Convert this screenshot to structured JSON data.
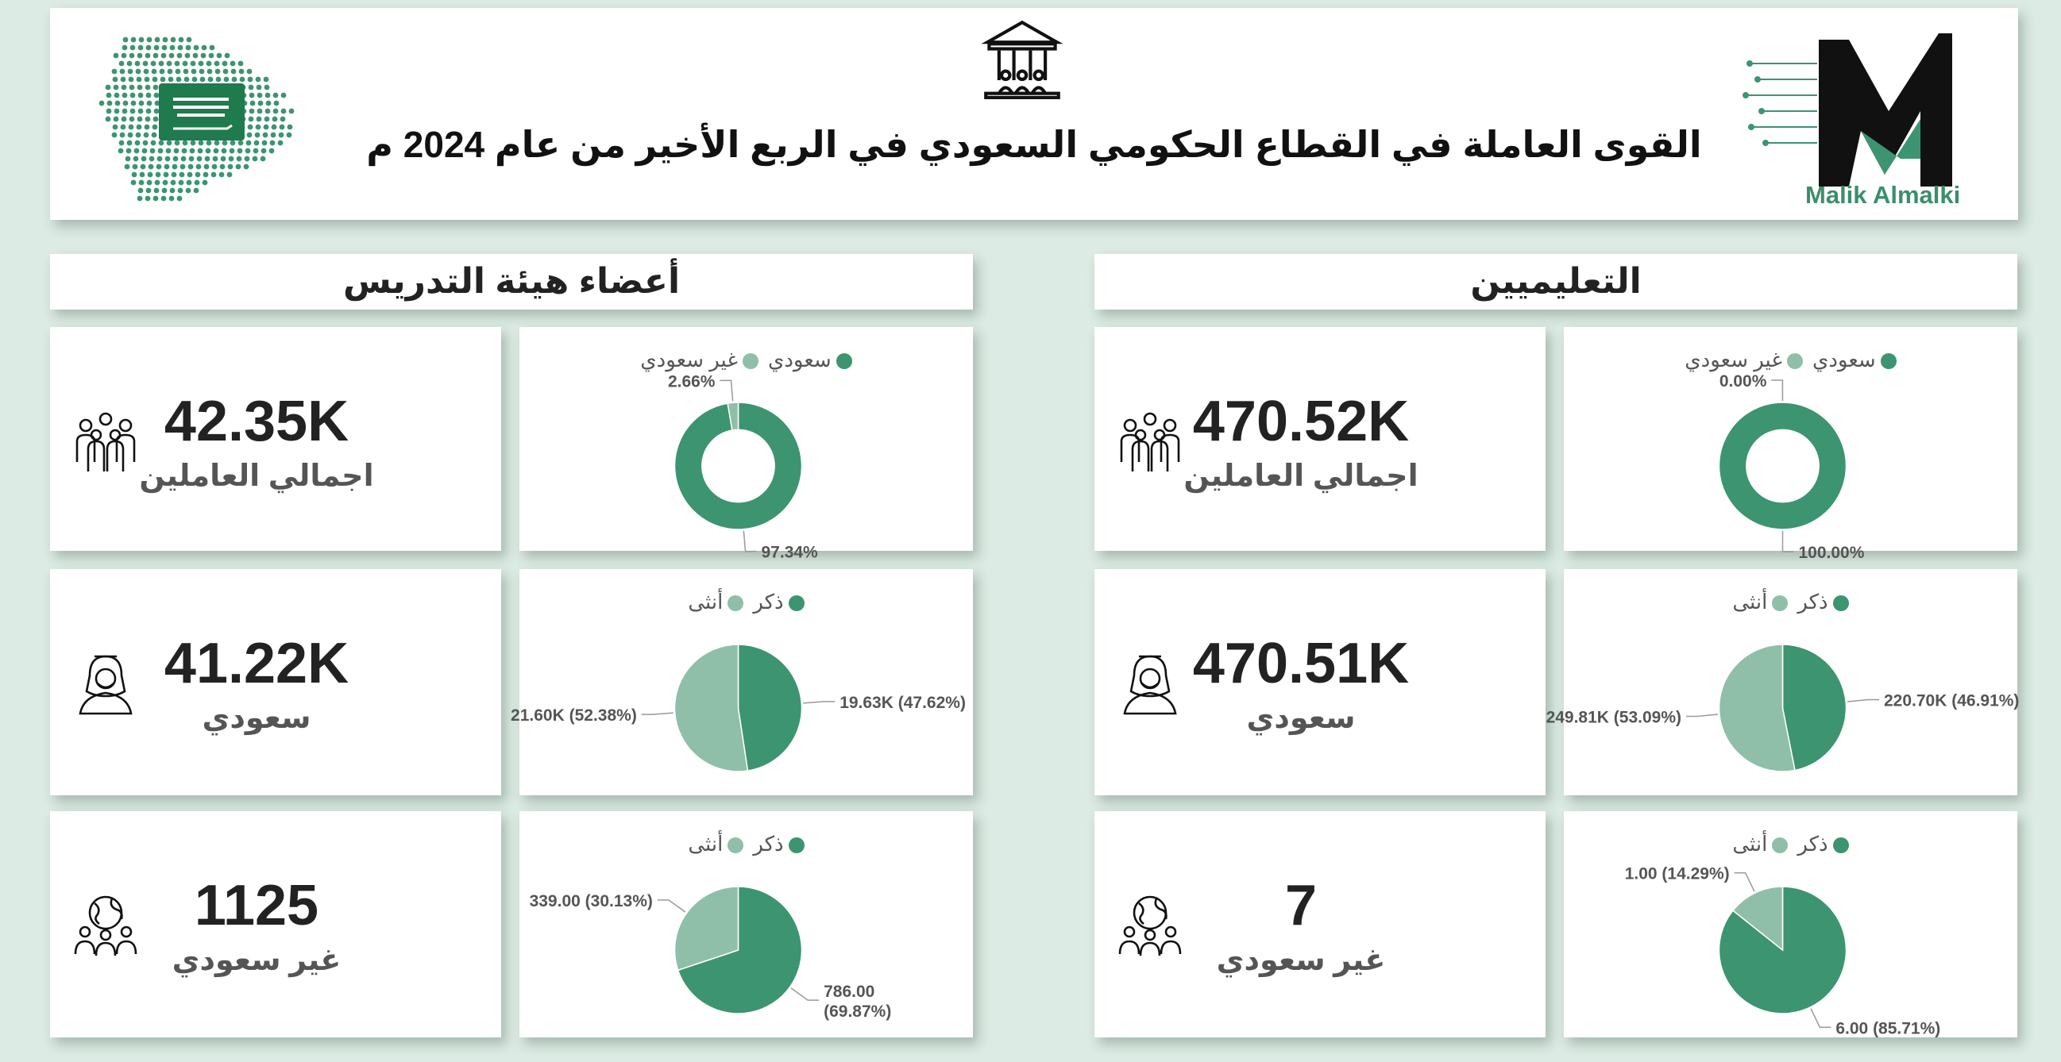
{
  "header": {
    "title": "القوى العاملة في القطاع الحكومي السعودي في الربع الأخير من عام 2024 م",
    "logo_text": "Malik Almalki"
  },
  "colors": {
    "primary": "#3d9470",
    "secondary": "#8fbfa8",
    "background": "#dcebe3"
  },
  "icons": {
    "header": "government-building-icon",
    "flag": "saudi-flag-map-icon",
    "logo": "m-monogram-logo-icon",
    "total": "group-people-icon",
    "saudi": "saudi-man-icon",
    "nonsaudi": "world-people-icon"
  },
  "sections": [
    {
      "title": "التعليميين",
      "kpis": [
        {
          "value": "470.52K",
          "label": "اجمالي العاملين"
        },
        {
          "value": "470.51K",
          "label": "سعودي"
        },
        {
          "value": "7",
          "label": "غير سعودي"
        }
      ]
    },
    {
      "title": "أعضاء هيئة التدريس",
      "kpis": [
        {
          "value": "42.35K",
          "label": "اجمالي العاملين"
        },
        {
          "value": "41.22K",
          "label": "سعودي"
        },
        {
          "value": "1125",
          "label": "غير سعودي"
        }
      ]
    }
  ],
  "chart_data": [
    {
      "type": "pie",
      "donut": true,
      "legend": [
        "سعودي",
        "غير سعودي"
      ],
      "labels": [
        "سعودي",
        "غير سعودي"
      ],
      "values": [
        470.52,
        0
      ],
      "data_labels": [
        "100.00%",
        "0.00%"
      ]
    },
    {
      "type": "pie",
      "legend": [
        "ذكر",
        "أنثى"
      ],
      "labels": [
        "ذكر",
        "أنثى"
      ],
      "values": [
        220.7,
        249.81
      ],
      "data_labels": [
        "220.70K (46.91%)",
        "249.81K (53.09%)"
      ]
    },
    {
      "type": "pie",
      "legend": [
        "ذكر",
        "أنثى"
      ],
      "labels": [
        "ذكر",
        "أنثى"
      ],
      "values": [
        6,
        1
      ],
      "data_labels": [
        "6.00 (85.71%)",
        "1.00 (14.29%)"
      ]
    },
    {
      "type": "pie",
      "donut": true,
      "legend": [
        "سعودي",
        "غير سعودي"
      ],
      "labels": [
        "سعودي",
        "غير سعودي"
      ],
      "values": [
        97.34,
        2.66
      ],
      "data_labels": [
        "97.34%",
        "2.66%"
      ]
    },
    {
      "type": "pie",
      "legend": [
        "ذكر",
        "أنثى"
      ],
      "labels": [
        "ذكر",
        "أنثى"
      ],
      "values": [
        19.63,
        21.6
      ],
      "data_labels": [
        "19.63K (47.62%)",
        "21.60K (52.38%)"
      ]
    },
    {
      "type": "pie",
      "legend": [
        "ذكر",
        "أنثى"
      ],
      "labels": [
        "ذكر",
        "أنثى"
      ],
      "values": [
        786,
        339
      ],
      "data_labels": [
        "786.00 (69.87%)",
        "339.00 (30.13%)"
      ]
    }
  ]
}
